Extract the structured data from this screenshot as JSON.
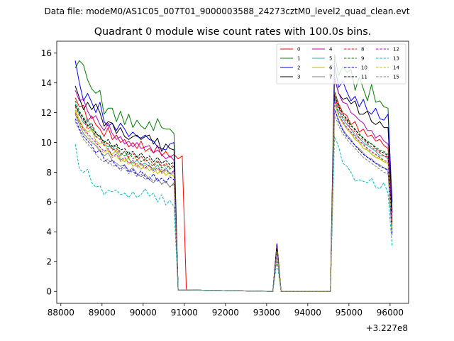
{
  "chart_data": {
    "type": "line",
    "suptitle": "Data file: modeM0/AS1C05_007T01_9000003588_24273cztM0_level2_quad_clean.evt",
    "title": "Quadrant 0 module wise count rates with 100.0s bins.",
    "xlabel": "",
    "ylabel": "",
    "offset_label": "+3.227e8",
    "xlim": [
      87900,
      96450
    ],
    "ylim": [
      -0.8,
      16.8
    ],
    "xticks": [
      88000,
      89000,
      90000,
      91000,
      92000,
      93000,
      94000,
      95000,
      96000
    ],
    "xtick_labels": [
      "88000",
      "89000",
      "90000",
      "91000",
      "92000",
      "93000",
      "94000",
      "95000",
      "96000"
    ],
    "yticks": [
      0,
      2,
      4,
      6,
      8,
      10,
      12,
      14,
      16
    ],
    "ytick_labels": [
      "0",
      "2",
      "4",
      "6",
      "8",
      "10",
      "12",
      "14",
      "16"
    ],
    "legend_position": "top-right",
    "x_segment1": [
      88350,
      88450,
      88550,
      88650,
      88750,
      88850,
      88950,
      89050,
      89150,
      89250,
      89350,
      89450,
      89550,
      89650,
      89750,
      89850,
      89950,
      90050,
      90150,
      90250,
      90350,
      90450,
      90550,
      90650,
      90750,
      90850,
      90950,
      91050
    ],
    "x_gap": [
      91050,
      93150,
      93250,
      93350,
      94450,
      94550
    ],
    "x_segment2": [
      94550,
      94650,
      94750,
      94850,
      94950,
      95050,
      95150,
      95250,
      95350,
      95450,
      95550,
      95650,
      95750,
      95850,
      95950,
      96050
    ],
    "series": [
      {
        "name": "0",
        "color": "#ff0000",
        "dash": "solid",
        "y_gap": [
          0,
          0,
          3.0,
          0,
          0,
          0
        ],
        "seg1": [
          13.0,
          12.4,
          12.5,
          11.4,
          11.8,
          11.2,
          10.9,
          10.4,
          11.0,
          10.2,
          10.5,
          10.0,
          10.2,
          9.7,
          10.0,
          9.6,
          10.1,
          9.4,
          9.6,
          9.3,
          9.8,
          9.1,
          9.4,
          9.0,
          9.2,
          8.9,
          9.1,
          0.1
        ],
        "seg2": [
          4.1,
          13.4,
          12.6,
          12.0,
          11.8,
          11.2,
          11.4,
          10.7,
          10.9,
          10.4,
          10.5,
          10.1,
          10.2,
          9.8,
          9.6,
          5.3
        ]
      },
      {
        "name": "1",
        "color": "#008000",
        "dash": "solid",
        "y_gap": [
          0,
          0,
          3.2,
          0,
          0,
          0
        ],
        "seg1": [
          15.0,
          15.5,
          15.2,
          14.2,
          13.6,
          13.3,
          13.5,
          11.9,
          12.3,
          12.3,
          11.4,
          12.1,
          11.2,
          11.9,
          11.0,
          11.5,
          11.1,
          10.9,
          11.4,
          10.8,
          11.6,
          11.0,
          10.9,
          10.9,
          10.6,
          0.1,
          0.1,
          0.1
        ],
        "seg2": [
          4.2,
          15.9,
          14.5,
          15.1,
          14.7,
          14.9,
          13.5,
          14.4,
          13.6,
          12.8,
          13.9,
          12.7,
          12.8,
          12.4,
          12.3,
          5.5
        ]
      },
      {
        "name": "2",
        "color": "#0000ff",
        "dash": "solid",
        "y_gap": [
          0,
          0,
          3.2,
          0,
          0,
          0
        ],
        "seg1": [
          15.5,
          14.0,
          12.8,
          13.3,
          12.7,
          12.0,
          12.7,
          11.4,
          11.1,
          11.3,
          10.8,
          11.3,
          10.9,
          10.4,
          10.7,
          10.4,
          10.3,
          10.5,
          10.2,
          10.1,
          9.7,
          9.6,
          9.5,
          9.9,
          10.0,
          0.1,
          0.1,
          0.1
        ],
        "seg2": [
          4.0,
          15.2,
          13.7,
          14.1,
          13.4,
          12.8,
          13.1,
          12.4,
          12.9,
          12.1,
          11.9,
          12.3,
          11.6,
          11.5,
          11.9,
          6.0
        ]
      },
      {
        "name": "3",
        "color": "#000000",
        "dash": "solid",
        "y_gap": [
          0,
          0,
          3.1,
          0,
          0,
          0
        ],
        "seg1": [
          13.8,
          13.0,
          12.2,
          12.7,
          12.2,
          12.6,
          12.0,
          11.1,
          11.4,
          11.3,
          10.6,
          11.0,
          10.4,
          10.2,
          10.4,
          10.5,
          10.2,
          10.4,
          10.5,
          9.9,
          10.3,
          9.4,
          9.9,
          9.6,
          9.5,
          0.1,
          0.1,
          0.1
        ],
        "seg2": [
          4.1,
          14.3,
          13.3,
          12.9,
          13.0,
          12.6,
          12.8,
          11.9,
          11.9,
          12.1,
          11.4,
          11.2,
          11.4,
          11.0,
          11.0,
          5.3
        ]
      },
      {
        "name": "4",
        "color": "#bf00bf",
        "dash": "solid",
        "y_gap": [
          0,
          0,
          3.0,
          0,
          0,
          0
        ],
        "seg1": [
          13.5,
          12.8,
          12.9,
          12.1,
          11.6,
          11.8,
          11.2,
          10.8,
          11.3,
          10.6,
          10.2,
          10.4,
          9.9,
          10.1,
          9.7,
          10.0,
          9.6,
          9.7,
          9.8,
          9.3,
          9.5,
          9.2,
          8.9,
          9.1,
          8.8,
          0.1,
          0.1,
          0.1
        ],
        "seg2": [
          3.9,
          14.4,
          13.3,
          12.7,
          12.6,
          12.0,
          11.8,
          11.5,
          11.3,
          10.8,
          10.8,
          10.3,
          10.5,
          10.1,
          9.9,
          4.8
        ]
      },
      {
        "name": "5",
        "color": "#20b2aa",
        "dash": "solid",
        "y_gap": [
          0,
          0,
          2.8,
          0,
          0,
          0
        ],
        "seg1": [
          12.6,
          11.9,
          11.3,
          11.6,
          10.8,
          10.4,
          10.5,
          9.9,
          9.7,
          9.8,
          9.3,
          9.1,
          9.4,
          8.9,
          8.6,
          8.8,
          8.5,
          8.6,
          8.4,
          8.2,
          8.5,
          8.0,
          8.3,
          7.9,
          8.0,
          0.1,
          0.1,
          0.1
        ],
        "seg2": [
          3.6,
          13.0,
          12.1,
          11.6,
          11.2,
          10.9,
          10.5,
          10.3,
          10.0,
          9.8,
          9.6,
          9.4,
          9.1,
          9.1,
          8.9,
          4.2
        ]
      },
      {
        "name": "6",
        "color": "#bfbf00",
        "dash": "solid",
        "y_gap": [
          0,
          0,
          2.7,
          0,
          0,
          0
        ],
        "seg1": [
          12.2,
          11.5,
          11.0,
          10.7,
          10.9,
          10.1,
          9.9,
          10.0,
          9.4,
          9.2,
          9.5,
          8.9,
          8.7,
          9.0,
          8.4,
          8.6,
          8.2,
          8.5,
          8.1,
          8.3,
          7.9,
          8.2,
          7.8,
          8.0,
          7.7,
          0.1,
          0.1,
          0.1
        ],
        "seg2": [
          3.5,
          12.7,
          11.8,
          11.3,
          10.9,
          10.6,
          10.2,
          10.0,
          9.6,
          9.5,
          9.2,
          9.0,
          8.9,
          8.7,
          8.6,
          4.0
        ]
      },
      {
        "name": "7",
        "color": "#808080",
        "dash": "solid",
        "y_gap": [
          0,
          0,
          2.6,
          0,
          0,
          0
        ],
        "seg1": [
          11.9,
          11.2,
          10.6,
          10.3,
          10.0,
          9.8,
          9.4,
          9.1,
          9.3,
          8.8,
          8.6,
          8.4,
          8.5,
          8.1,
          8.3,
          7.9,
          7.7,
          7.9,
          7.5,
          7.3,
          7.6,
          7.2,
          7.4,
          7.0,
          7.3,
          0.1,
          0.1,
          0.1
        ],
        "seg2": [
          3.3,
          12.2,
          11.5,
          10.9,
          10.5,
          10.2,
          9.8,
          9.6,
          9.3,
          9.0,
          8.9,
          8.6,
          8.5,
          8.3,
          8.2,
          3.9
        ]
      },
      {
        "name": "8",
        "color": "#ff0000",
        "dash": "dashed",
        "y_gap": [
          0,
          0,
          2.9,
          0,
          0,
          0
        ],
        "seg1": [
          12.4,
          11.8,
          11.5,
          10.9,
          11.1,
          10.4,
          10.2,
          9.8,
          10.0,
          9.5,
          9.6,
          9.2,
          9.4,
          9.0,
          9.3,
          8.8,
          9.1,
          8.7,
          8.9,
          8.5,
          8.8,
          8.4,
          8.6,
          8.3,
          8.5,
          0.1,
          0.1,
          0.1
        ],
        "seg2": [
          3.7,
          13.1,
          12.3,
          11.7,
          11.4,
          10.9,
          10.7,
          10.3,
          10.2,
          9.9,
          9.7,
          9.5,
          9.3,
          9.1,
          9.0,
          4.4
        ]
      },
      {
        "name": "9",
        "color": "#008000",
        "dash": "dashed",
        "y_gap": [
          0,
          0,
          2.8,
          0,
          0,
          0
        ],
        "seg1": [
          12.8,
          12.1,
          11.7,
          11.2,
          10.9,
          10.7,
          10.3,
          10.1,
          9.9,
          9.6,
          9.8,
          9.3,
          9.1,
          9.4,
          8.9,
          9.1,
          8.7,
          8.9,
          8.6,
          8.4,
          8.7,
          8.3,
          8.5,
          8.2,
          8.4,
          0.1,
          0.1,
          0.1
        ],
        "seg2": [
          3.8,
          13.5,
          12.5,
          11.9,
          11.6,
          11.2,
          10.8,
          10.6,
          10.3,
          10.1,
          9.9,
          9.7,
          9.5,
          9.4,
          9.2,
          4.5
        ]
      },
      {
        "name": "10",
        "color": "#0000ff",
        "dash": "dashed",
        "y_gap": [
          0,
          0,
          2.6,
          0,
          0,
          0
        ],
        "seg1": [
          11.6,
          10.9,
          10.4,
          10.1,
          9.8,
          9.3,
          9.5,
          8.9,
          8.6,
          8.8,
          8.4,
          8.2,
          8.5,
          8.0,
          8.2,
          7.8,
          8.1,
          7.7,
          7.5,
          7.9,
          7.4,
          7.6,
          7.3,
          7.7,
          7.5,
          0.1,
          0.1,
          0.1
        ],
        "seg2": [
          3.4,
          12.3,
          11.4,
          10.8,
          10.4,
          10.1,
          9.8,
          9.5,
          9.2,
          9.0,
          8.8,
          8.6,
          8.4,
          8.3,
          8.1,
          3.8
        ]
      },
      {
        "name": "11",
        "color": "#000000",
        "dash": "dashed",
        "y_gap": [
          0,
          0,
          2.9,
          0,
          0,
          0
        ],
        "seg1": [
          12.5,
          12.0,
          11.6,
          11.1,
          11.3,
          10.6,
          10.4,
          10.0,
          10.2,
          9.7,
          9.9,
          9.5,
          9.6,
          9.2,
          9.4,
          9.0,
          9.3,
          8.9,
          9.1,
          8.7,
          9.0,
          8.6,
          8.8,
          8.5,
          8.7,
          0.1,
          0.1,
          0.1
        ],
        "seg2": [
          3.8,
          13.2,
          12.4,
          11.9,
          11.5,
          11.1,
          10.9,
          10.5,
          10.3,
          10.0,
          9.9,
          9.6,
          9.4,
          9.3,
          9.1,
          4.6
        ]
      },
      {
        "name": "12",
        "color": "#bf00bf",
        "dash": "dashed",
        "y_gap": [
          0,
          0,
          2.7,
          0,
          0,
          0
        ],
        "seg1": [
          12.0,
          11.4,
          10.9,
          10.6,
          10.3,
          10.0,
          9.7,
          9.4,
          9.6,
          9.1,
          9.2,
          8.8,
          9.0,
          8.6,
          8.8,
          8.4,
          8.6,
          8.3,
          8.5,
          8.1,
          8.3,
          8.0,
          8.2,
          7.9,
          8.1,
          0.1,
          0.1,
          0.1
        ],
        "seg2": [
          3.6,
          12.8,
          11.9,
          11.4,
          11.0,
          10.7,
          10.4,
          10.1,
          9.9,
          9.6,
          9.4,
          9.2,
          9.0,
          8.8,
          8.7,
          4.2
        ]
      },
      {
        "name": "13",
        "color": "#00bfbf",
        "dash": "dashed",
        "y_gap": [
          0,
          0,
          2.0,
          0,
          0,
          0
        ],
        "seg1": [
          9.9,
          8.2,
          8.0,
          8.2,
          7.3,
          7.0,
          7.1,
          6.5,
          6.8,
          6.7,
          6.8,
          6.5,
          6.6,
          6.3,
          6.7,
          6.3,
          6.5,
          6.9,
          6.4,
          6.6,
          6.0,
          6.5,
          5.8,
          6.1,
          5.7,
          0.1,
          0.1,
          0.1
        ],
        "seg2": [
          2.8,
          10.4,
          9.7,
          8.6,
          8.4,
          8.0,
          7.4,
          7.5,
          7.4,
          7.3,
          7.6,
          7.0,
          6.9,
          7.3,
          6.6,
          3.0
        ]
      },
      {
        "name": "14",
        "color": "#bfbf00",
        "dash": "dashed",
        "y_gap": [
          0,
          0,
          2.7,
          0,
          0,
          0
        ],
        "seg1": [
          12.1,
          11.3,
          10.8,
          10.5,
          10.1,
          9.9,
          9.5,
          9.3,
          9.5,
          9.0,
          9.1,
          8.7,
          8.9,
          8.5,
          8.7,
          8.3,
          8.5,
          8.2,
          8.4,
          8.0,
          8.2,
          7.9,
          8.1,
          7.8,
          8.0,
          0.1,
          0.1,
          0.1
        ],
        "seg2": [
          3.5,
          12.6,
          11.8,
          11.3,
          10.9,
          10.6,
          10.3,
          10.0,
          9.8,
          9.5,
          9.3,
          9.1,
          8.9,
          8.8,
          8.6,
          4.1
        ]
      },
      {
        "name": "15",
        "color": "#808080",
        "dash": "dashed",
        "y_gap": [
          0,
          0,
          2.4,
          0,
          0,
          0
        ],
        "seg1": [
          11.4,
          10.8,
          10.2,
          9.9,
          9.6,
          9.2,
          8.9,
          8.7,
          8.9,
          8.4,
          8.5,
          8.1,
          8.3,
          7.9,
          8.1,
          7.7,
          7.9,
          7.5,
          7.7,
          7.4,
          7.6,
          7.2,
          7.4,
          7.0,
          7.2,
          0.1,
          0.1,
          0.1
        ],
        "seg2": [
          3.2,
          11.9,
          11.1,
          10.6,
          10.2,
          9.9,
          9.6,
          9.3,
          9.0,
          8.8,
          8.6,
          8.4,
          8.2,
          8.0,
          7.9,
          3.7
        ]
      }
    ]
  }
}
